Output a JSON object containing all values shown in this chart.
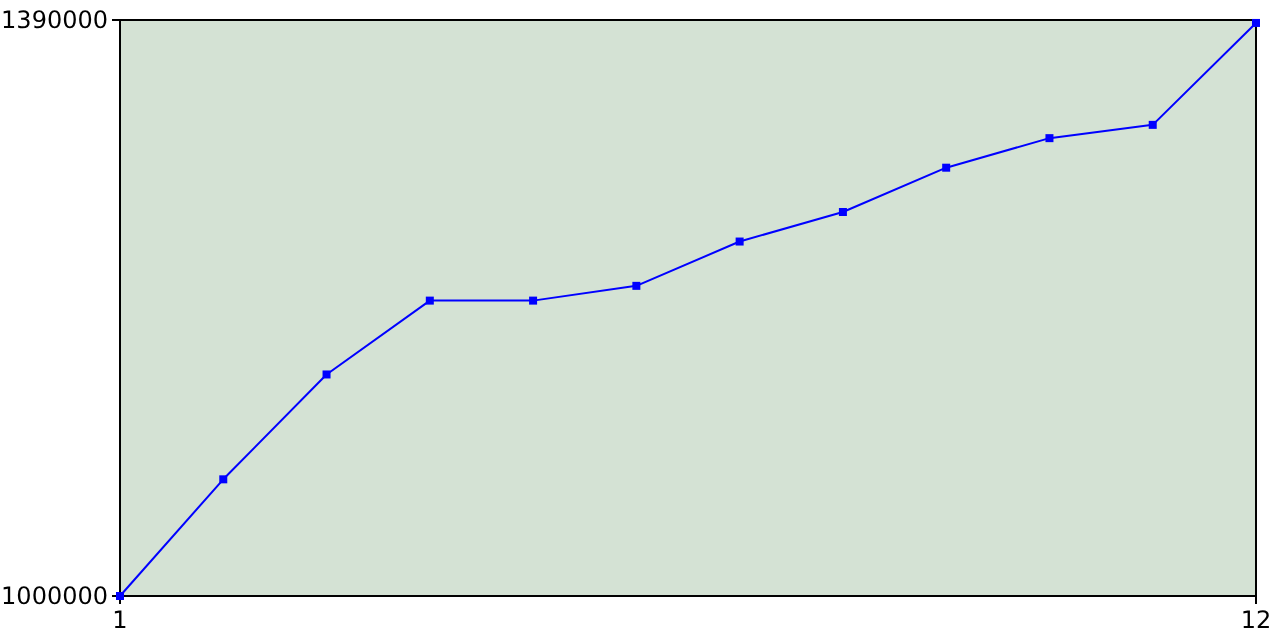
{
  "chart_data": {
    "type": "line",
    "x": [
      1,
      2,
      3,
      4,
      5,
      6,
      7,
      8,
      9,
      10,
      11,
      12
    ],
    "series": [
      {
        "color": "#0000ff",
        "values": [
          1000000,
          1079000,
          1150000,
          1200000,
          1200000,
          1210000,
          1240000,
          1260000,
          1290000,
          1310000,
          1319000,
          1388000
        ]
      }
    ],
    "xlim": [
      1,
      12
    ],
    "xticks": [
      1,
      12
    ],
    "ylim": [
      1000000,
      1390000
    ],
    "yticks": [
      1000000,
      1390000
    ],
    "marker": "square",
    "grid": false
  }
}
